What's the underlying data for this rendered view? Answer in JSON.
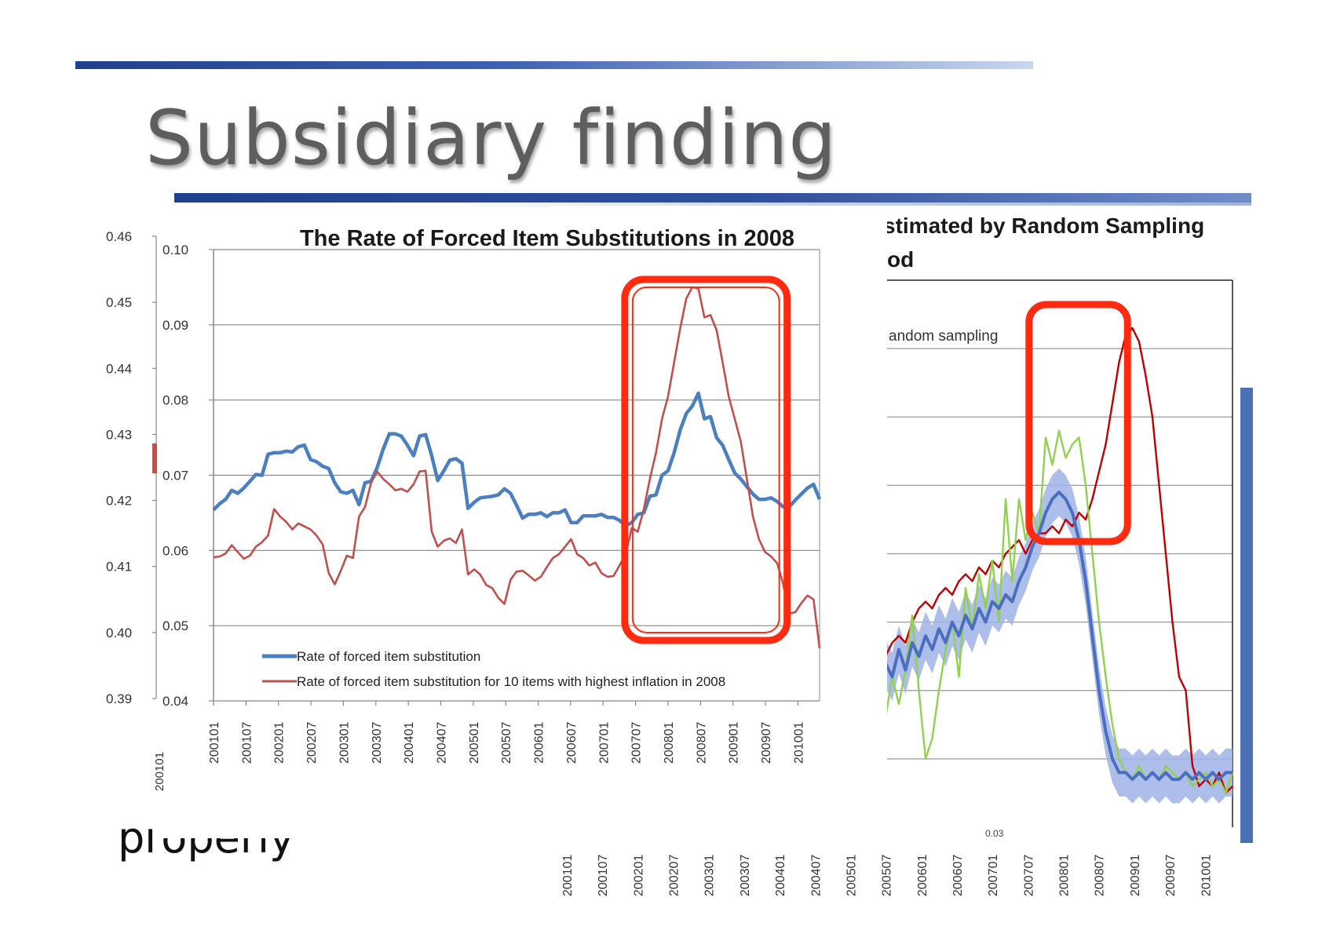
{
  "slide": {
    "title": "Subsidiary finding",
    "partial_text": "properly"
  },
  "chart_data": [
    {
      "type": "line",
      "title": "The Rate of Forced Item Substitutions in 2008",
      "outer_axis_ticks": [
        "0.46",
        "0.45",
        "0.44",
        "0.43",
        "0.42",
        "0.41",
        "0.40",
        "0.39"
      ],
      "y_ticks": [
        "0.10",
        "0.09",
        "0.08",
        "0.07",
        "0.06",
        "0.05",
        "0.04"
      ],
      "ylim": [
        0.04,
        0.1
      ],
      "x_ticks": [
        "200101",
        "200107",
        "200201",
        "200207",
        "200301",
        "200307",
        "200401",
        "200407",
        "200501",
        "200507",
        "200601",
        "200607",
        "200701",
        "200707",
        "200801",
        "200807",
        "200901",
        "200907",
        "201001"
      ],
      "x_tick_partial": "200101",
      "grid": true,
      "legend_position": "bottom-left",
      "highlight": {
        "x_range": [
          200705,
          200911
        ]
      },
      "series": [
        {
          "name": "Rate of forced item substitution",
          "color": "#4a7fc1",
          "values": [
            0.0654,
            0.0662,
            0.0668,
            0.068,
            0.0676,
            0.0683,
            0.0692,
            0.0701,
            0.07,
            0.0728,
            0.073,
            0.073,
            0.0732,
            0.0731,
            0.0738,
            0.074,
            0.0721,
            0.0718,
            0.0712,
            0.0709,
            0.069,
            0.0678,
            0.0676,
            0.068,
            0.0661,
            0.069,
            0.0692,
            0.071,
            0.0735,
            0.0755,
            0.0755,
            0.0752,
            0.074,
            0.0726,
            0.0752,
            0.0754,
            0.0726,
            0.0693,
            0.0706,
            0.072,
            0.0722,
            0.0716,
            0.0656,
            0.0664,
            0.067,
            0.0671,
            0.0672,
            0.0674,
            0.0682,
            0.0676,
            0.066,
            0.0643,
            0.0648,
            0.0648,
            0.065,
            0.0645,
            0.065,
            0.065,
            0.0654,
            0.0637,
            0.0637,
            0.0646,
            0.0646,
            0.0646,
            0.0648,
            0.0644,
            0.0644,
            0.064,
            0.0633,
            0.0637,
            0.0648,
            0.065,
            0.0672,
            0.0674,
            0.07,
            0.0706,
            0.073,
            0.076,
            0.0782,
            0.0792,
            0.0809,
            0.0775,
            0.0778,
            0.075,
            0.074,
            0.0721,
            0.0703,
            0.0695,
            0.0685,
            0.0675,
            0.0668,
            0.0668,
            0.067,
            0.0665,
            0.0658,
            0.0658,
            0.0667,
            0.0675,
            0.0683,
            0.0688,
            0.0668
          ]
        },
        {
          "name": "Rate of forced item substitution  for 10 items with highest inflation in 2008",
          "color": "#c0504d",
          "values": [
            0.0591,
            0.0592,
            0.0596,
            0.0607,
            0.0598,
            0.0589,
            0.0593,
            0.0605,
            0.0611,
            0.062,
            0.0655,
            0.0645,
            0.0638,
            0.0628,
            0.0636,
            0.0632,
            0.0628,
            0.062,
            0.0608,
            0.057,
            0.0555,
            0.0573,
            0.0593,
            0.059,
            0.0645,
            0.0658,
            0.069,
            0.0705,
            0.0695,
            0.0688,
            0.068,
            0.0682,
            0.0678,
            0.0688,
            0.0705,
            0.0706,
            0.0625,
            0.0605,
            0.0613,
            0.0616,
            0.061,
            0.0628,
            0.0568,
            0.0575,
            0.0568,
            0.0554,
            0.055,
            0.0537,
            0.0529,
            0.0561,
            0.0572,
            0.0573,
            0.0567,
            0.056,
            0.0565,
            0.0578,
            0.059,
            0.0595,
            0.0605,
            0.0615,
            0.0595,
            0.059,
            0.058,
            0.0584,
            0.057,
            0.0565,
            0.0566,
            0.058,
            0.0595,
            0.063,
            0.0625,
            0.0655,
            0.0695,
            0.073,
            0.0775,
            0.0805,
            0.085,
            0.0895,
            0.0935,
            0.095,
            0.0948,
            0.091,
            0.0913,
            0.0893,
            0.085,
            0.0805,
            0.0775,
            0.0745,
            0.0695,
            0.0645,
            0.0615,
            0.0598,
            0.0592,
            0.0583,
            0.0555,
            0.0516,
            0.0518,
            0.053,
            0.054,
            0.0535,
            0.047
          ]
        }
      ]
    },
    {
      "type": "line",
      "title_fragment_1": "stimated by Random Sampling",
      "title_fragment_2": "od",
      "legend_fragment": "andom sampling",
      "axis_label_partial": "0.03",
      "x_ticks": [
        "200101",
        "200107",
        "200201",
        "200207",
        "200301",
        "200307",
        "200401",
        "200407",
        "200501",
        "200507",
        "200601",
        "200607",
        "200701",
        "200707",
        "200801",
        "200807",
        "200901",
        "200907",
        "201001"
      ],
      "highlight": {
        "x_range": [
          200712,
          200903
        ]
      },
      "series": [
        {
          "color": "#c00000",
          "values": [
            0.41,
            0.411,
            0.41,
            0.408,
            0.409,
            0.407,
            0.411,
            0.413,
            0.415,
            0.417,
            0.418,
            0.417,
            0.42,
            0.422,
            0.423,
            0.422,
            0.424,
            0.425,
            0.424,
            0.426,
            0.427,
            0.426,
            0.428,
            0.427,
            0.429,
            0.428,
            0.43,
            0.431,
            0.432,
            0.43,
            0.432,
            0.433,
            0.433,
            0.434,
            0.433,
            0.435,
            0.434,
            0.436,
            0.435,
            0.438,
            0.442,
            0.446,
            0.452,
            0.458,
            0.462,
            0.463,
            0.461,
            0.456,
            0.45,
            0.44,
            0.43,
            0.42,
            0.412,
            0.41,
            0.399,
            0.396,
            0.397,
            0.396,
            0.398,
            0.395,
            0.396
          ]
        },
        {
          "color": "#92d050",
          "values": [
            0.412,
            0.43,
            0.431,
            0.416,
            0.418,
            0.429,
            0.406,
            0.411,
            0.406,
            0.412,
            0.408,
            0.413,
            0.421,
            0.41,
            0.4,
            0.403,
            0.41,
            0.416,
            0.42,
            0.412,
            0.425,
            0.419,
            0.427,
            0.422,
            0.429,
            0.42,
            0.438,
            0.426,
            0.438,
            0.432,
            0.436,
            0.433,
            0.447,
            0.443,
            0.448,
            0.444,
            0.446,
            0.447,
            0.44,
            0.43,
            0.42,
            0.412,
            0.405,
            0.4,
            0.398,
            0.397,
            0.399,
            0.397,
            0.398,
            0.397,
            0.399,
            0.398,
            0.397,
            0.398,
            0.396,
            0.397,
            0.398,
            0.396,
            0.397,
            0.395,
            0.398
          ]
        },
        {
          "color": "#4a6fc1",
          "values": [
            0.408,
            0.409,
            0.41,
            0.407,
            0.412,
            0.409,
            0.413,
            0.41,
            0.414,
            0.412,
            0.416,
            0.413,
            0.417,
            0.415,
            0.418,
            0.416,
            0.419,
            0.417,
            0.42,
            0.418,
            0.421,
            0.419,
            0.422,
            0.42,
            0.423,
            0.422,
            0.424,
            0.423,
            0.426,
            0.428,
            0.431,
            0.433,
            0.436,
            0.438,
            0.439,
            0.438,
            0.436,
            0.432,
            0.426,
            0.418,
            0.41,
            0.404,
            0.4,
            0.398,
            0.398,
            0.397,
            0.398,
            0.397,
            0.398,
            0.397,
            0.398,
            0.397,
            0.397,
            0.398,
            0.397,
            0.398,
            0.397,
            0.398,
            0.397,
            0.398,
            0.398
          ]
        }
      ]
    }
  ]
}
